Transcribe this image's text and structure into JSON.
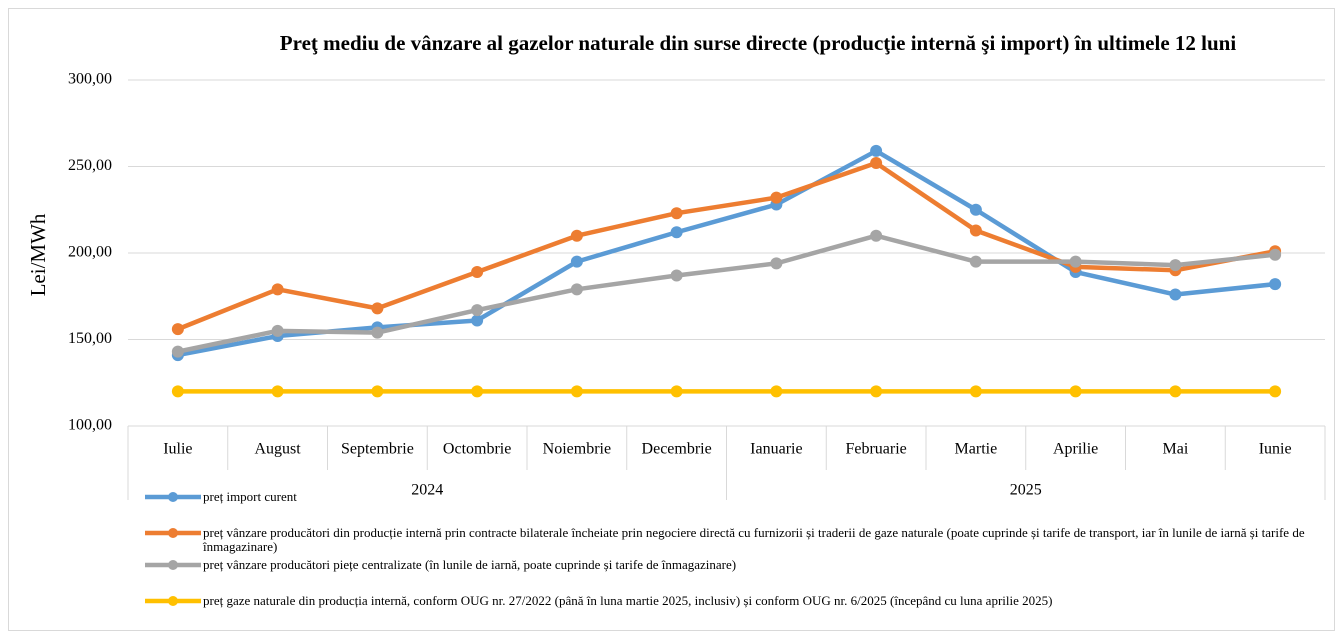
{
  "chart_data": {
    "type": "line",
    "title": "Preţ mediu de vânzare al gazelor naturale din surse directe (producţie internă şi import) în ultimele 12 luni",
    "y_label": "Lei/MWh",
    "categories": [
      "Iulie",
      "August",
      "Septembrie",
      "Octombrie",
      "Noiembrie",
      "Decembrie",
      "Ianuarie",
      "Februarie",
      "Martie",
      "Aprilie",
      "Mai",
      "Iunie"
    ],
    "groups": [
      {
        "label": "2024",
        "size": 6
      },
      {
        "label": "2025",
        "size": 6
      }
    ],
    "ylim": [
      100,
      300
    ],
    "yticks": [
      {
        "value": 100,
        "label": "100,00"
      },
      {
        "value": 150,
        "label": "150,00"
      },
      {
        "value": 200,
        "label": "200,00"
      },
      {
        "value": 250,
        "label": "250,00"
      },
      {
        "value": 300,
        "label": "300,00"
      }
    ],
    "grid": true,
    "legend": "bottom",
    "series": [
      {
        "name": "preț import curent",
        "color": "#5b9bd5",
        "values": [
          141,
          152,
          157,
          161,
          195,
          212,
          228,
          259,
          225,
          189,
          176,
          182
        ]
      },
      {
        "name": "preț vânzare producători din producție internă prin contracte bilaterale încheiate prin negociere directă cu furnizorii și traderii de gaze naturale (poate cuprinde și tarife de transport, iar în lunile de iarnă și tarife de înmagazinare)",
        "color": "#ed7d31",
        "values": [
          156,
          179,
          168,
          189,
          210,
          223,
          232,
          252,
          213,
          192,
          190,
          201
        ]
      },
      {
        "name": "preț vânzare producători piețe centralizate (în lunile de iarnă, poate cuprinde și tarife de înmagazinare)",
        "color": "#a5a5a5",
        "values": [
          143,
          155,
          154,
          167,
          179,
          187,
          194,
          210,
          195,
          195,
          193,
          199
        ]
      },
      {
        "name": "preț gaze naturale din producția internă, conform OUG nr. 27/2022 (până în luna martie 2025, inclusiv) și conform OUG nr. 6/2025 (începând cu luna aprilie 2025)",
        "color": "#ffc000",
        "values": [
          120,
          120,
          120,
          120,
          120,
          120,
          120,
          120,
          120,
          120,
          120,
          120
        ]
      }
    ]
  }
}
